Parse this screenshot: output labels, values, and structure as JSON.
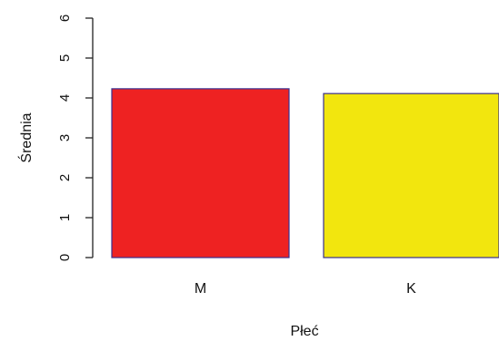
{
  "chart_data": {
    "type": "bar",
    "title": "",
    "xlabel": "Płeć",
    "ylabel": "Średnia",
    "categories": [
      "M",
      "K"
    ],
    "values": [
      4.23,
      4.11
    ],
    "colors": [
      "#ee2222",
      "#f2e60e"
    ],
    "border_color": "#3a2f8f",
    "ylim": [
      0,
      6
    ],
    "yticks": [
      "0",
      "1",
      "2",
      "3",
      "4",
      "5",
      "6"
    ],
    "grid": false,
    "legend": "none"
  }
}
